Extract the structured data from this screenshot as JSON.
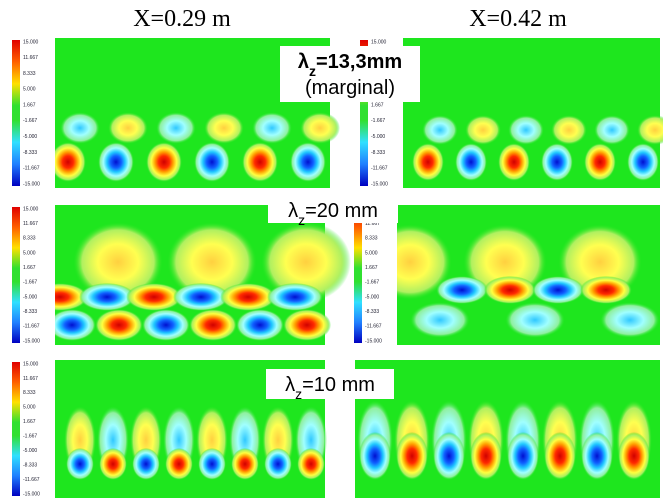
{
  "header": {
    "columns": [
      "X=0.29 m",
      "X=0.42 m"
    ]
  },
  "panels": [
    {
      "symbol": "λ",
      "sub": "z",
      "rest": "=13,3mm",
      "note": "(marginal)"
    },
    {
      "symbol": "λ",
      "sub": "z",
      "rest": "=20 mm"
    },
    {
      "symbol": "λ",
      "sub": "z",
      "rest": "=10 mm"
    }
  ],
  "colorbar": {
    "ticks": [
      "15.000",
      "11.667",
      "8.333",
      "5.000",
      "1.667",
      "-1.667",
      "-5.000",
      "-8.333",
      "-11.667",
      "-15.000"
    ]
  }
}
